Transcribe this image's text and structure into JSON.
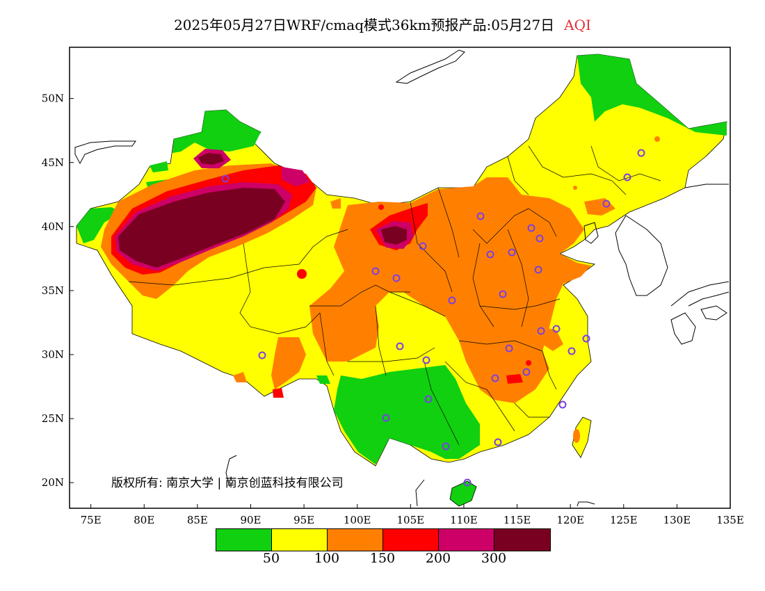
{
  "title": {
    "text": "2025年05月27日WRF/cmaq模式36km预报产品:05月27日",
    "variable": "AQI"
  },
  "map": {
    "lon_range": [
      73,
      135
    ],
    "lat_range": [
      18,
      54
    ],
    "x_ticks": [
      "75E",
      "80E",
      "85E",
      "90E",
      "95E",
      "100E",
      "105E",
      "110E",
      "115E",
      "120E",
      "125E",
      "130E",
      "135E"
    ],
    "y_ticks": [
      "20N",
      "25N",
      "30N",
      "35N",
      "40N",
      "45N",
      "50N"
    ],
    "colors": {
      "good": "#10d010",
      "moderate": "#ffff00",
      "sensitive": "#ff8000",
      "unhealthy": "#ff0000",
      "very_unhealthy": "#cc0066",
      "hazardous": "#7a0022"
    }
  },
  "copyright": "版权所有: 南京大学 | 南京创蓝科技有限公司",
  "legend": {
    "colors": [
      "#10d010",
      "#ffff00",
      "#ff8000",
      "#ff0000",
      "#cc0066",
      "#7a0022"
    ],
    "labels": [
      "50",
      "100",
      "150",
      "200",
      "300"
    ]
  }
}
